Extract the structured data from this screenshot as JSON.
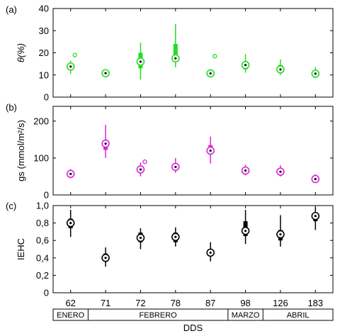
{
  "chart_data": [
    {
      "type": "box",
      "panel_label": "(a)",
      "ylabel": "θ(%)",
      "ylim": [
        0,
        40
      ],
      "yticks": [
        0,
        10,
        20,
        30,
        40
      ],
      "color": "#22dd22",
      "boxes": [
        {
          "cat": "62",
          "whisker": [
            10.5,
            16.5
          ],
          "box": [
            12.5,
            15
          ],
          "median": 13.8,
          "outliers": [
            19
          ]
        },
        {
          "cat": "71",
          "whisker": [
            9.5,
            12.5
          ],
          "box": [
            10.2,
            11.5
          ],
          "median": 10.8,
          "outliers": []
        },
        {
          "cat": "72",
          "whisker": [
            8,
            24.5
          ],
          "box": [
            13,
            20
          ],
          "median": 16,
          "outliers": []
        },
        {
          "cat": "78",
          "whisker": [
            13.5,
            33
          ],
          "box": [
            16,
            24
          ],
          "median": 17.5,
          "outliers": []
        },
        {
          "cat": "87",
          "whisker": [
            9.5,
            12
          ],
          "box": [
            10.2,
            11.2
          ],
          "median": 10.7,
          "outliers": [
            18.5
          ]
        },
        {
          "cat": "98",
          "whisker": [
            11,
            19.5
          ],
          "box": [
            12.5,
            16
          ],
          "median": 14.5,
          "outliers": []
        },
        {
          "cat": "126",
          "whisker": [
            10,
            17
          ],
          "box": [
            11.5,
            14.5
          ],
          "median": 12.5,
          "outliers": []
        },
        {
          "cat": "183",
          "whisker": [
            8.5,
            13.5
          ],
          "box": [
            9.8,
            11.8
          ],
          "median": 10.6,
          "outliers": []
        }
      ]
    },
    {
      "type": "box",
      "panel_label": "(b)",
      "ylabel": "gs (mmol/m²/s)",
      "ylim": [
        0,
        240
      ],
      "yticks": [
        0,
        100,
        200
      ],
      "color": "#dd22dd",
      "boxes": [
        {
          "cat": "62",
          "whisker": [
            45,
            70
          ],
          "box": [
            52,
            62
          ],
          "median": 57,
          "outliers": []
        },
        {
          "cat": "71",
          "whisker": [
            100,
            190
          ],
          "box": [
            122,
            147
          ],
          "median": 139,
          "outliers": []
        },
        {
          "cat": "72",
          "whisker": [
            50,
            88
          ],
          "box": [
            62,
            75
          ],
          "median": 69,
          "outliers": [
            90
          ]
        },
        {
          "cat": "78",
          "whisker": [
            60,
            100
          ],
          "box": [
            68,
            86
          ],
          "median": 76,
          "outliers": []
        },
        {
          "cat": "87",
          "whisker": [
            85,
            158
          ],
          "box": [
            110,
            135
          ],
          "median": 120,
          "outliers": []
        },
        {
          "cat": "98",
          "whisker": [
            53,
            82
          ],
          "box": [
            60,
            72
          ],
          "median": 66,
          "outliers": []
        },
        {
          "cat": "126",
          "whisker": [
            50,
            80
          ],
          "box": [
            57,
            70
          ],
          "median": 63,
          "outliers": []
        },
        {
          "cat": "183",
          "whisker": [
            33,
            56
          ],
          "box": [
            38,
            48
          ],
          "median": 43,
          "outliers": []
        }
      ]
    },
    {
      "type": "box",
      "panel_label": "(c)",
      "ylabel": "IEHC",
      "ylim": [
        0,
        1
      ],
      "yticks": [
        0,
        0.2,
        0.4,
        0.6,
        0.8,
        1.0
      ],
      "ytick_labels": [
        "0",
        "0,2",
        "0,4",
        "0,6",
        "0,8",
        "1,0"
      ],
      "color": "#000000",
      "boxes": [
        {
          "cat": "62",
          "whisker": [
            0.64,
            0.95
          ],
          "box": [
            0.74,
            0.85
          ],
          "median": 0.8,
          "outliers": []
        },
        {
          "cat": "71",
          "whisker": [
            0.3,
            0.52
          ],
          "box": [
            0.36,
            0.45
          ],
          "median": 0.4,
          "outliers": []
        },
        {
          "cat": "72",
          "whisker": [
            0.5,
            0.74
          ],
          "box": [
            0.58,
            0.69
          ],
          "median": 0.63,
          "outliers": []
        },
        {
          "cat": "78",
          "whisker": [
            0.53,
            0.75
          ],
          "box": [
            0.58,
            0.69
          ],
          "median": 0.64,
          "outliers": []
        },
        {
          "cat": "87",
          "whisker": [
            0.36,
            0.58
          ],
          "box": [
            0.42,
            0.5
          ],
          "median": 0.46,
          "outliers": []
        },
        {
          "cat": "98",
          "whisker": [
            0.56,
            0.95
          ],
          "box": [
            0.65,
            0.82
          ],
          "median": 0.71,
          "outliers": []
        },
        {
          "cat": "126",
          "whisker": [
            0.53,
            0.89
          ],
          "box": [
            0.6,
            0.72
          ],
          "median": 0.67,
          "outliers": []
        },
        {
          "cat": "183",
          "whisker": [
            0.72,
            0.98
          ],
          "box": [
            0.82,
            0.92
          ],
          "median": 0.88,
          "outliers": []
        }
      ]
    }
  ],
  "categories": [
    "62",
    "71",
    "72",
    "78",
    "87",
    "98",
    "126",
    "183"
  ],
  "xlabel": "DDS",
  "months": [
    {
      "label": "ENERO",
      "from": 0,
      "to": 1
    },
    {
      "label": "FEBRERO",
      "from": 1,
      "to": 5
    },
    {
      "label": "MARZO",
      "from": 5,
      "to": 6
    },
    {
      "label": "ABRIL",
      "from": 6,
      "to": 8
    }
  ]
}
